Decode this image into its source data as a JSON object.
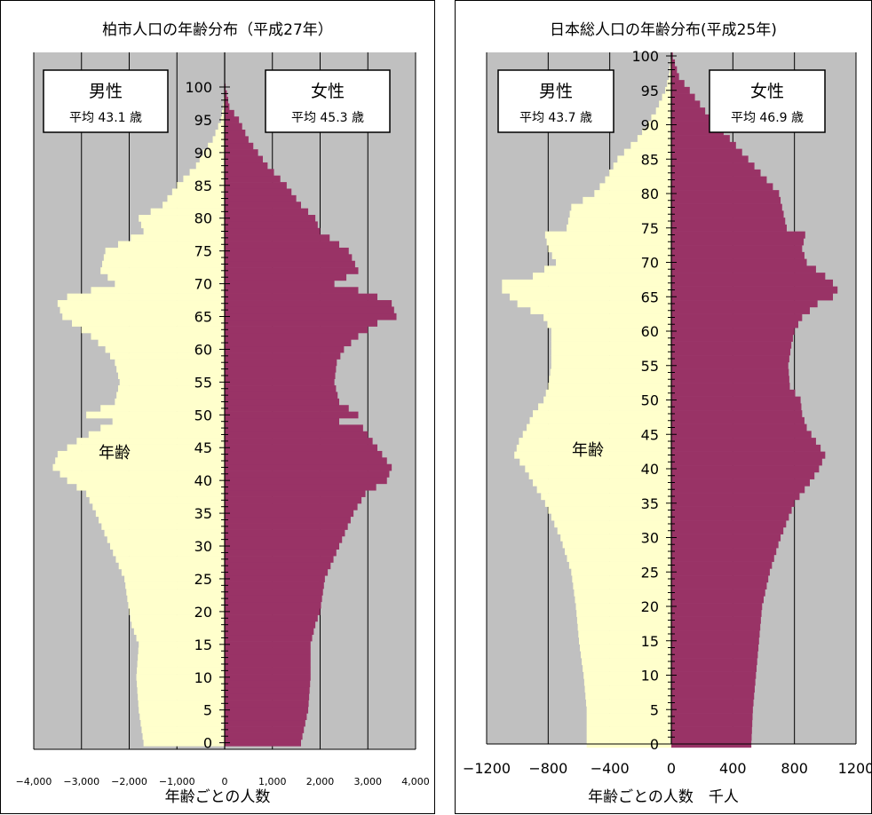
{
  "chart_data": [
    {
      "type": "population-pyramid",
      "title": "柏市人口の年齢分布（平成27年）",
      "xlabel": "年齢ごとの人数",
      "axis_label": "年齢",
      "xlim": [
        -4000,
        4000
      ],
      "xticks": [
        -4000,
        -3000,
        -2000,
        -1000,
        0,
        1000,
        2000,
        3000,
        4000
      ],
      "xtick_labels": [
        "−4,000",
        "−3,000",
        "−2,000",
        "−1,000",
        "0",
        "1,000",
        "2,000",
        "3,000",
        "4,000"
      ],
      "age_ticks": [
        0,
        5,
        10,
        15,
        20,
        25,
        30,
        35,
        40,
        45,
        50,
        55,
        60,
        65,
        70,
        75,
        80,
        85,
        90,
        95,
        100
      ],
      "male_label": {
        "title": "男性",
        "avg": "平均 43.1 歳"
      },
      "female_label": {
        "title": "女性",
        "avg": "平均 45.3 歳"
      },
      "male_color": "#ffffcc",
      "female_color": "#993366",
      "bg_color": "#c0c0c0",
      "age_points": [
        0,
        5,
        10,
        15,
        18,
        20,
        25,
        30,
        35,
        38,
        40,
        42,
        44,
        46,
        48,
        49,
        50,
        52,
        55,
        58,
        60,
        62,
        64,
        65,
        67,
        68,
        69,
        70,
        72,
        75,
        78,
        80,
        82,
        85,
        88,
        90,
        92,
        95,
        97,
        100
      ],
      "male": [
        1700,
        1800,
        1850,
        1800,
        1950,
        2000,
        2100,
        2400,
        2700,
        2900,
        3300,
        3600,
        3500,
        3100,
        2600,
        2350,
        2900,
        2300,
        2200,
        2300,
        2500,
        2800,
        3200,
        3400,
        3500,
        3300,
        2800,
        2300,
        2600,
        2500,
        1700,
        1800,
        1300,
        1000,
        600,
        450,
        250,
        80,
        30,
        5
      ],
      "female": [
        1600,
        1750,
        1800,
        1800,
        1900,
        2000,
        2100,
        2400,
        2700,
        2950,
        3400,
        3500,
        3300,
        3100,
        2900,
        2400,
        2800,
        2400,
        2300,
        2350,
        2500,
        2800,
        3200,
        3600,
        3500,
        3200,
        2800,
        2300,
        2800,
        2600,
        2000,
        1900,
        1600,
        1300,
        900,
        700,
        500,
        300,
        100,
        20
      ]
    },
    {
      "type": "population-pyramid",
      "title": "日本総人口の年齢分布(平成25年)",
      "xlabel": "年齢ごとの人数　千人",
      "axis_label": "年齢",
      "xlim": [
        -1200,
        1200
      ],
      "xticks": [
        -1200,
        -800,
        -400,
        0,
        400,
        800,
        1200
      ],
      "xtick_labels": [
        "−1200",
        "−800",
        "−400",
        "0",
        "400",
        "800",
        "1200"
      ],
      "age_ticks": [
        0,
        5,
        10,
        15,
        20,
        25,
        30,
        35,
        40,
        45,
        50,
        55,
        60,
        65,
        70,
        75,
        80,
        85,
        90,
        95,
        100
      ],
      "male_label": {
        "title": "男性",
        "avg": "平均 43.7 歳"
      },
      "female_label": {
        "title": "女性",
        "avg": "平均 46.9 歳"
      },
      "male_color": "#ffffcc",
      "female_color": "#993366",
      "bg_color": "#c0c0c0",
      "age_points": [
        0,
        5,
        10,
        15,
        20,
        25,
        30,
        35,
        38,
        40,
        42,
        44,
        46,
        48,
        50,
        52,
        55,
        58,
        60,
        62,
        64,
        65,
        66,
        67,
        68,
        70,
        72,
        74,
        75,
        78,
        80,
        82,
        85,
        88,
        90,
        92,
        95,
        97,
        100
      ],
      "male": [
        550,
        550,
        570,
        600,
        620,
        650,
        720,
        820,
        900,
        950,
        1020,
        990,
        940,
        900,
        830,
        800,
        780,
        780,
        780,
        830,
        1000,
        1050,
        1100,
        1100,
        900,
        750,
        800,
        820,
        680,
        650,
        500,
        430,
        350,
        220,
        160,
        100,
        40,
        15,
        3
      ],
      "female": [
        520,
        530,
        550,
        570,
        590,
        640,
        710,
        800,
        900,
        960,
        1000,
        940,
        880,
        850,
        840,
        770,
        760,
        780,
        800,
        850,
        950,
        1050,
        1080,
        1050,
        1000,
        880,
        850,
        870,
        750,
        720,
        700,
        620,
        500,
        380,
        300,
        220,
        120,
        50,
        10
      ]
    }
  ]
}
